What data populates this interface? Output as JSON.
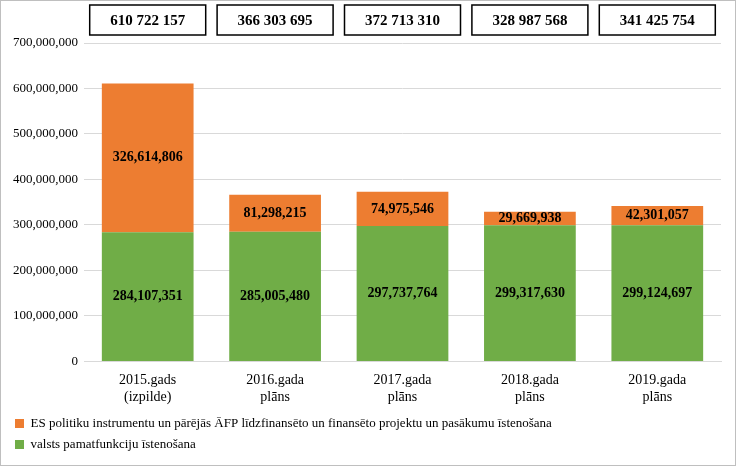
{
  "chart_data": {
    "type": "bar",
    "stacked": true,
    "categories": [
      "2015.gads (izpilde)",
      "2016.gada plāns",
      "2017.gada plāns",
      "2018.gada plāns",
      "2019.gada plāns"
    ],
    "series": [
      {
        "name": "valsts pamatfunkciju īstenošana",
        "color": "#70ad47",
        "values": [
          284107351,
          285005480,
          297737764,
          299317630,
          299124697
        ],
        "value_labels": [
          "284,107,351",
          "285,005,480",
          "297,737,764",
          "299,317,630",
          "299,124,697"
        ]
      },
      {
        "name": "ES politiku instrumentu un pārējās ĀFP līdzfinansēto un finansēto projektu un pasākumu īstenošana",
        "color": "#ed7d31",
        "values": [
          326614806,
          81298215,
          74975546,
          29669938,
          42301057
        ],
        "value_labels": [
          "326,614,806",
          "81,298,215",
          "74,975,546",
          "29,669,938",
          "42,301,057"
        ]
      }
    ],
    "totals": [
      "610 722 157",
      "366 303 695",
      "372 713 310",
      "328 987 568",
      "341 425 754"
    ],
    "ylim": [
      0,
      700000000
    ],
    "yticks": [
      0,
      {
        "value": 100000000,
        "label": "100,000,000"
      },
      {
        "value": 200000000,
        "label": "200,000,000"
      },
      {
        "value": 300000000,
        "label": "300,000,000"
      },
      {
        "value": 400000000,
        "label": "400,000,000"
      },
      {
        "value": 500000000,
        "label": "500,000,000"
      },
      {
        "value": 600000000,
        "label": "600,000,000"
      },
      {
        "value": 700000000,
        "label": "700,000,000"
      }
    ],
    "grid": true,
    "legend": "bottom",
    "data_labels": true
  }
}
